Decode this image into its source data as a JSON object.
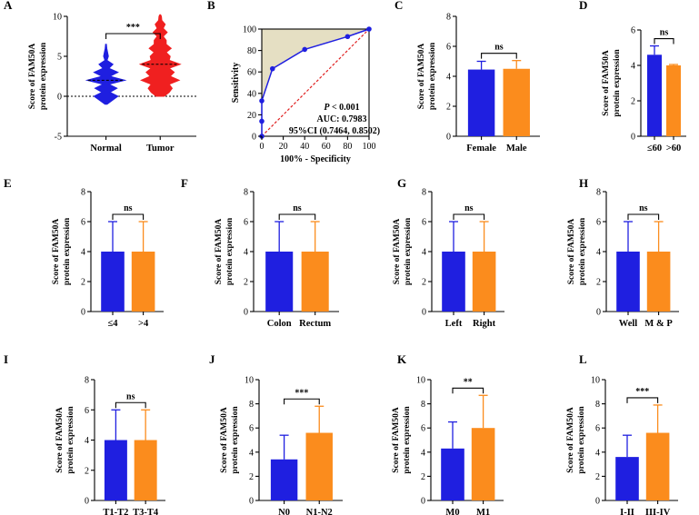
{
  "chart_data": [
    {
      "label": "A",
      "type": "violin",
      "categories": [
        "Normal",
        "Tumor"
      ],
      "series": [
        {
          "name": "Normal",
          "color": "#1f1fe0",
          "median": 2,
          "min": -1,
          "max": 6.5,
          "profile": [
            [
              -1,
              0.05
            ],
            [
              0,
              0.6
            ],
            [
              0.5,
              0.2
            ],
            [
              1,
              0.55
            ],
            [
              1.5,
              0.15
            ],
            [
              2,
              0.95
            ],
            [
              2.5,
              0.2
            ],
            [
              3,
              0.6
            ],
            [
              3.5,
              0.15
            ],
            [
              4,
              0.35
            ],
            [
              4.5,
              0.05
            ],
            [
              5,
              0.12
            ],
            [
              6,
              0.04
            ],
            [
              6.5,
              0.02
            ]
          ]
        },
        {
          "name": "Tumor",
          "color": "#f02020",
          "median": 4,
          "min": 0,
          "max": 10.2,
          "profile": [
            [
              0,
              0.2
            ],
            [
              0.5,
              0.45
            ],
            [
              1,
              0.6
            ],
            [
              1.5,
              0.45
            ],
            [
              2,
              0.95
            ],
            [
              2.5,
              0.5
            ],
            [
              3,
              0.7
            ],
            [
              3.5,
              0.45
            ],
            [
              4,
              1.0
            ],
            [
              4.5,
              0.45
            ],
            [
              5,
              0.5
            ],
            [
              5.5,
              0.3
            ],
            [
              6,
              0.55
            ],
            [
              6.5,
              0.3
            ],
            [
              7,
              0.3
            ],
            [
              7.5,
              0.15
            ],
            [
              8,
              0.35
            ],
            [
              8.5,
              0.15
            ],
            [
              9,
              0.25
            ],
            [
              9.5,
              0.08
            ],
            [
              10,
              0.06
            ],
            [
              10.2,
              0.02
            ]
          ]
        }
      ],
      "ylim": [
        -5,
        10
      ],
      "yticks": [
        "10",
        "5",
        "0",
        "-5"
      ],
      "ytick_values": [
        10,
        5,
        0,
        -5
      ],
      "ylabel": [
        "Score of FAM50A",
        "protein expression"
      ],
      "significance": "***"
    },
    {
      "label": "B",
      "type": "roc",
      "x": [
        0,
        0,
        0,
        10,
        40,
        80,
        100
      ],
      "y": [
        0,
        14,
        33,
        63,
        81,
        93,
        100
      ],
      "xlim": [
        0,
        100
      ],
      "ylim": [
        0,
        100
      ],
      "xticks": [
        "0",
        "20",
        "40",
        "60",
        "80",
        "100"
      ],
      "xtick_values": [
        0,
        20,
        40,
        60,
        80,
        100
      ],
      "yticks": [
        "100",
        "80",
        "60",
        "40",
        "20",
        "0"
      ],
      "ytick_values": [
        100,
        80,
        60,
        40,
        20,
        0
      ],
      "xlabel": "100% - Specificity",
      "ylabel": "Sensitivity",
      "p_prefix": "P",
      "p_text": " < 0.001",
      "auc_text": "AUC: 0.7983",
      "ci_text": "95%CI (0.7464, 0.8502)",
      "line_color": "#1f1fe0",
      "ref_color": "#e02020",
      "fill_color": "#e5dfc3"
    },
    {
      "label": "C",
      "type": "bar",
      "categories": [
        "Female",
        "Male"
      ],
      "values": [
        4.45,
        4.5
      ],
      "errors": [
        0.55,
        0.55
      ],
      "ylim": [
        0,
        8
      ],
      "yticks": [
        "8",
        "6",
        "4",
        "2",
        "0"
      ],
      "ytick_values": [
        8,
        6,
        4,
        2,
        0
      ],
      "ylabel": [
        "Score of FAM50A",
        "protein expression"
      ],
      "significance": "ns"
    },
    {
      "label": "D",
      "type": "bar",
      "categories": [
        "≤60",
        ">60"
      ],
      "values": [
        4.6,
        4.0
      ],
      "errors": [
        0.5,
        0.05
      ],
      "ylim": [
        0,
        6
      ],
      "yticks": [
        "6",
        "4",
        "2",
        "0"
      ],
      "ytick_values": [
        6,
        4,
        2,
        0
      ],
      "ylabel": [
        "Score of FAM50A",
        "protein expression"
      ],
      "significance": "ns"
    },
    {
      "label": "E",
      "type": "bar",
      "categories": [
        "≤4",
        ">4"
      ],
      "values": [
        4,
        4
      ],
      "errors": [
        2,
        2
      ],
      "ylim": [
        0,
        8
      ],
      "yticks": [
        "8",
        "6",
        "4",
        "2",
        "0"
      ],
      "ytick_values": [
        8,
        6,
        4,
        2,
        0
      ],
      "ylabel": [
        "Score of FAM50A",
        "protein expression"
      ],
      "significance": "ns"
    },
    {
      "label": "F",
      "type": "bar",
      "categories": [
        "Colon",
        "Rectum"
      ],
      "values": [
        4,
        4
      ],
      "errors": [
        2,
        2
      ],
      "ylim": [
        0,
        8
      ],
      "yticks": [
        "8",
        "6",
        "4",
        "2",
        "0"
      ],
      "ytick_values": [
        8,
        6,
        4,
        2,
        0
      ],
      "ylabel": [
        "Score of FAM50A",
        "protein expression"
      ],
      "significance": "ns"
    },
    {
      "label": "G",
      "type": "bar",
      "categories": [
        "Left",
        "Right"
      ],
      "values": [
        4,
        4
      ],
      "errors": [
        2,
        2
      ],
      "ylim": [
        0,
        8
      ],
      "yticks": [
        "8",
        "6",
        "4",
        "2",
        "0"
      ],
      "ytick_values": [
        8,
        6,
        4,
        2,
        0
      ],
      "ylabel": [
        "Score of FAM50A",
        "protein expression"
      ],
      "significance": "ns"
    },
    {
      "label": "H",
      "type": "bar",
      "categories": [
        "Well",
        "M & P"
      ],
      "values": [
        4,
        4
      ],
      "errors": [
        2,
        2
      ],
      "ylim": [
        0,
        8
      ],
      "yticks": [
        "8",
        "6",
        "4",
        "2",
        "0"
      ],
      "ytick_values": [
        8,
        6,
        4,
        2,
        0
      ],
      "ylabel": [
        "Score of FAM50A",
        "protein expression"
      ],
      "significance": "ns"
    },
    {
      "label": "I",
      "type": "bar",
      "categories": [
        "T1-T2",
        "T3-T4"
      ],
      "values": [
        4,
        4
      ],
      "errors": [
        2,
        2
      ],
      "ylim": [
        0,
        8
      ],
      "yticks": [
        "8",
        "6",
        "4",
        "2",
        "0"
      ],
      "ytick_values": [
        8,
        6,
        4,
        2,
        0
      ],
      "ylabel": [
        "Score of FAM50A",
        "protein expression"
      ],
      "significance": "ns"
    },
    {
      "label": "J",
      "type": "bar",
      "categories": [
        "N0",
        "N1-N2"
      ],
      "values": [
        3.4,
        5.6
      ],
      "errors": [
        2.0,
        2.2
      ],
      "ylim": [
        0,
        10
      ],
      "yticks": [
        "10",
        "8",
        "6",
        "4",
        "2",
        "0"
      ],
      "ytick_values": [
        10,
        8,
        6,
        4,
        2,
        0
      ],
      "ylabel": [
        "Score of FAM50A",
        "protein expression"
      ],
      "significance": "***"
    },
    {
      "label": "K",
      "type": "bar",
      "categories": [
        "M0",
        "M1"
      ],
      "values": [
        4.3,
        6.0
      ],
      "errors": [
        2.2,
        2.7
      ],
      "ylim": [
        0,
        10
      ],
      "yticks": [
        "10",
        "8",
        "6",
        "4",
        "2",
        "0"
      ],
      "ytick_values": [
        10,
        8,
        6,
        4,
        2,
        0
      ],
      "ylabel": [
        "Score of FAM50A",
        "protein expression"
      ],
      "significance": "**"
    },
    {
      "label": "L",
      "type": "bar",
      "categories": [
        "I-II",
        "III-IV"
      ],
      "values": [
        3.6,
        5.6
      ],
      "errors": [
        1.8,
        2.3
      ],
      "ylim": [
        0,
        10
      ],
      "yticks": [
        "10",
        "8",
        "6",
        "4",
        "2",
        "0"
      ],
      "ytick_values": [
        10,
        8,
        6,
        4,
        2,
        0
      ],
      "ylabel": [
        "Score of FAM50A",
        "protein expression"
      ],
      "significance": "***"
    }
  ],
  "colors": {
    "group1": "#1f1fe0",
    "group2": "#fb8c1d",
    "violin_normal": "#1f1fe0",
    "violin_tumor": "#f02020"
  }
}
